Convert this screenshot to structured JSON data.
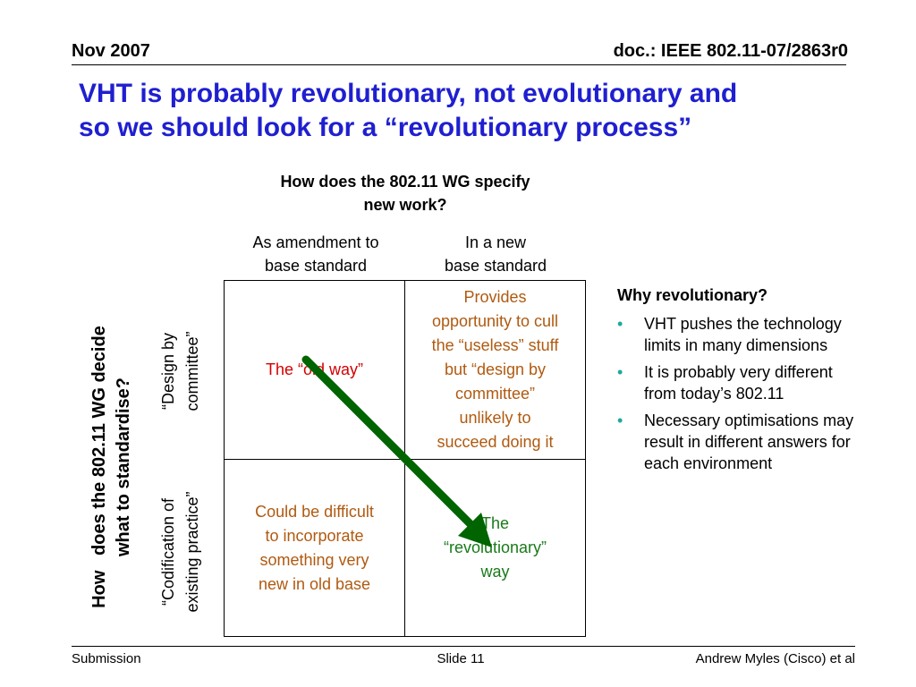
{
  "header": {
    "date": "Nov 2007",
    "doc": "doc.: IEEE 802.11-07/2863r0"
  },
  "title": {
    "line1": "VHT is probably revolutionary, not evolutionary and",
    "line2": "so we should look for a “revolutionary process”"
  },
  "matrix": {
    "column_question": {
      "line1": "How does the 802.11 WG specify",
      "line2": "new work?"
    },
    "columns": [
      {
        "line1": "As amendment to",
        "line2": "base standard"
      },
      {
        "line1": "In a new",
        "line2": "base standard"
      }
    ],
    "row_question": {
      "line1": "How   does the 802.11 WG decide",
      "line2": "what to standardise?"
    },
    "rows": [
      {
        "line1": "“Design by",
        "line2": "committee”"
      },
      {
        "line1": "“Codification of",
        "line2": "existing practice”"
      }
    ],
    "cells": {
      "r1c1": [
        "The “old way”"
      ],
      "r1c2": [
        "Provides",
        "opportunity to cull",
        "the “useless” stuff",
        "but “design by",
        "committee”",
        "unlikely to",
        "succeed doing it"
      ],
      "r2c1": [
        "Could be difficult",
        "to incorporate",
        "something very",
        "new in old base"
      ],
      "r2c2": [
        "The",
        "“revolutionary”",
        "way"
      ]
    },
    "colors": {
      "old_way": "#d40000",
      "brown_text": "#b05a10",
      "revolutionary": "#1a7a1a",
      "arrow": "#006400"
    }
  },
  "why": {
    "title": "Why revolutionary?",
    "bullets": [
      "VHT pushes the technology limits in many dimensions",
      "It is probably very different from today’s 802.11",
      "Necessary optimisations may result in different answers for each environment"
    ],
    "bullet_color": "#20a8a0"
  },
  "footer": {
    "left": "Submission",
    "slide": "Slide 11",
    "author": "Andrew Myles (Cisco) et al"
  },
  "colors": {
    "title": "#1f1fd0"
  }
}
